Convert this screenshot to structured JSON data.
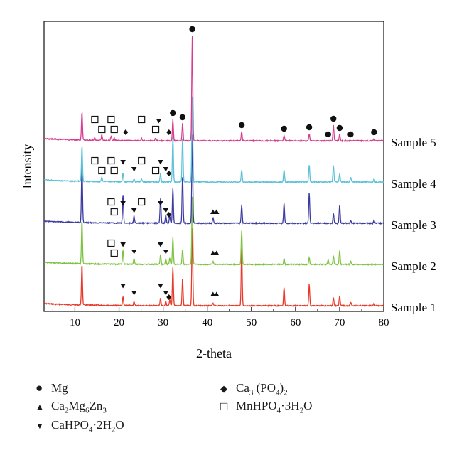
{
  "chart_data": {
    "type": "line",
    "title": "",
    "xlabel": "2-theta",
    "ylabel": "Intensity",
    "xlim": [
      3,
      80
    ],
    "xticks": [
      10,
      20,
      30,
      40,
      50,
      60,
      70,
      80
    ],
    "grid": false,
    "series": [
      {
        "name": "Sample 1",
        "color": "#e8392a",
        "baseline_offset": 0,
        "peaks": [
          [
            11.6,
            58
          ],
          [
            20.9,
            12
          ],
          [
            23.4,
            6
          ],
          [
            29.4,
            10
          ],
          [
            30.6,
            6
          ],
          [
            31.5,
            8
          ],
          [
            32.2,
            55
          ],
          [
            34.4,
            38
          ],
          [
            36.6,
            110
          ],
          [
            41.3,
            4
          ],
          [
            47.8,
            80
          ],
          [
            57.4,
            26
          ],
          [
            63.1,
            30
          ],
          [
            68.6,
            12
          ],
          [
            70.0,
            14
          ],
          [
            72.5,
            5
          ],
          [
            77.8,
            4
          ]
        ]
      },
      {
        "name": "Sample 2",
        "color": "#7dc241",
        "baseline_offset": 1,
        "peaks": [
          [
            11.6,
            62
          ],
          [
            20.9,
            20
          ],
          [
            23.4,
            8
          ],
          [
            29.4,
            14
          ],
          [
            30.6,
            8
          ],
          [
            31.5,
            9
          ],
          [
            32.2,
            38
          ],
          [
            34.4,
            22
          ],
          [
            36.6,
            95
          ],
          [
            41.3,
            4
          ],
          [
            47.8,
            48
          ],
          [
            57.4,
            8
          ],
          [
            63.1,
            10
          ],
          [
            67.4,
            6
          ],
          [
            68.6,
            12
          ],
          [
            70.0,
            20
          ],
          [
            72.5,
            4
          ]
        ]
      },
      {
        "name": "Sample 3",
        "color": "#3a3aa0",
        "baseline_offset": 2,
        "peaks": [
          [
            11.6,
            88
          ],
          [
            20.9,
            40
          ],
          [
            23.4,
            10
          ],
          [
            29.4,
            35
          ],
          [
            30.6,
            12
          ],
          [
            31.5,
            10
          ],
          [
            32.2,
            50
          ],
          [
            34.4,
            68
          ],
          [
            36.6,
            125
          ],
          [
            41.3,
            8
          ],
          [
            47.8,
            26
          ],
          [
            57.4,
            28
          ],
          [
            63.1,
            43
          ],
          [
            68.6,
            14
          ],
          [
            70.0,
            26
          ],
          [
            72.5,
            4
          ],
          [
            77.8,
            4
          ]
        ]
      },
      {
        "name": "Sample 4",
        "color": "#5bc0d8",
        "baseline_offset": 3,
        "peaks": [
          [
            11.6,
            50
          ],
          [
            16.1,
            6
          ],
          [
            20.9,
            12
          ],
          [
            23.4,
            4
          ],
          [
            25.1,
            4
          ],
          [
            29.4,
            12
          ],
          [
            32.2,
            64
          ],
          [
            34.4,
            64
          ],
          [
            36.6,
            120
          ],
          [
            47.8,
            17
          ],
          [
            57.4,
            17
          ],
          [
            63.1,
            24
          ],
          [
            68.6,
            24
          ],
          [
            70.0,
            12
          ],
          [
            72.5,
            7
          ],
          [
            77.8,
            5
          ]
        ]
      },
      {
        "name": "Sample 5",
        "color": "#d63c8f",
        "baseline_offset": 4,
        "peaks": [
          [
            11.6,
            40
          ],
          [
            14.5,
            4
          ],
          [
            16.1,
            8
          ],
          [
            18.2,
            6
          ],
          [
            18.9,
            4
          ],
          [
            25.1,
            4
          ],
          [
            28.3,
            4
          ],
          [
            32.2,
            30
          ],
          [
            34.4,
            24
          ],
          [
            36.6,
            148
          ],
          [
            47.8,
            13
          ],
          [
            57.4,
            8
          ],
          [
            63.1,
            10
          ],
          [
            68.6,
            22
          ],
          [
            70.0,
            9
          ],
          [
            77.8,
            3
          ]
        ]
      }
    ],
    "markers": [
      {
        "series": "Sample 5",
        "symbol": "circle",
        "x": [
          32.2,
          34.4,
          36.6,
          47.8,
          57.4,
          63.1,
          67.4,
          68.6,
          70.0,
          72.5,
          77.8
        ]
      },
      {
        "series": "Sample 5",
        "symbol": "square",
        "x": [
          14.5,
          16.1,
          18.2,
          18.9,
          25.1,
          28.3
        ]
      },
      {
        "series": "Sample 5",
        "symbol": "diamond",
        "x": [
          21.5,
          31.3
        ]
      },
      {
        "series": "Sample 5",
        "symbol": "triangle-down",
        "x": [
          29.0
        ]
      },
      {
        "series": "Sample 4",
        "symbol": "square",
        "x": [
          14.5,
          16.1,
          18.2,
          18.9,
          25.1,
          28.3
        ]
      },
      {
        "series": "Sample 4",
        "symbol": "triangle-down",
        "x": [
          20.9,
          23.4,
          29.4,
          30.6
        ]
      },
      {
        "series": "Sample 4",
        "symbol": "diamond",
        "x": [
          31.3
        ]
      },
      {
        "series": "Sample 3",
        "symbol": "square",
        "x": [
          18.2,
          18.9,
          25.1
        ]
      },
      {
        "series": "Sample 3",
        "symbol": "triangle-down",
        "x": [
          20.9,
          23.4,
          29.4,
          30.6
        ]
      },
      {
        "series": "Sample 3",
        "symbol": "diamond",
        "x": [
          31.3
        ]
      },
      {
        "series": "Sample 3",
        "symbol": "triangle-up",
        "x": [
          41.3,
          42.1
        ]
      },
      {
        "series": "Sample 2",
        "symbol": "square",
        "x": [
          18.2,
          18.9
        ]
      },
      {
        "series": "Sample 2",
        "symbol": "triangle-down",
        "x": [
          20.9,
          23.4,
          29.4,
          30.6
        ]
      },
      {
        "series": "Sample 2",
        "symbol": "triangle-up",
        "x": [
          41.3,
          42.1
        ]
      },
      {
        "series": "Sample 1",
        "symbol": "triangle-down",
        "x": [
          20.9,
          23.4,
          29.4,
          30.6
        ]
      },
      {
        "series": "Sample 1",
        "symbol": "diamond",
        "x": [
          31.3
        ]
      },
      {
        "series": "Sample 1",
        "symbol": "triangle-up",
        "x": [
          41.3,
          42.1
        ]
      }
    ]
  },
  "legend": {
    "items": [
      {
        "symbol": "circle",
        "label": "Mg"
      },
      {
        "symbol": "triangle-up",
        "label": "Ca2Mg6Zn3"
      },
      {
        "symbol": "triangle-down",
        "label": "CaHPO4·2H2O"
      },
      {
        "symbol": "diamond",
        "label": "Ca3 (PO4)2"
      },
      {
        "symbol": "square",
        "label": "MnHPO4·3H2O"
      }
    ]
  }
}
